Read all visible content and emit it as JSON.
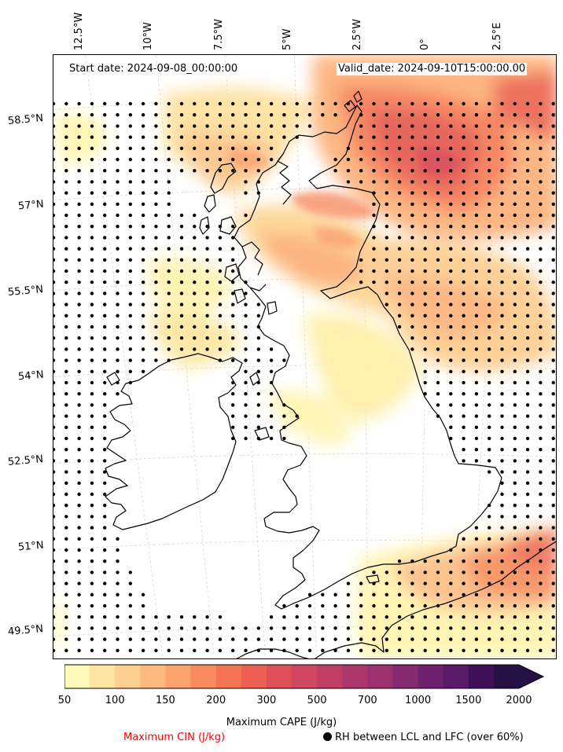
{
  "header": {
    "start_date": "Start date: 2024-09-08_00:00:00",
    "valid_date": "Valid_date: 2024-09-10T15:00:00.00"
  },
  "longitude_labels": [
    "12.5°W",
    "10°W",
    "7.5°W",
    "5°W",
    "2.5°W",
    "0°",
    "2.5°E"
  ],
  "latitude_labels": [
    "58.5°N",
    "57°N",
    "55.5°N",
    "54°N",
    "52.5°N",
    "51°N",
    "49.5°N"
  ],
  "colorbar": {
    "ticks": [
      "50",
      "100",
      "150",
      "200",
      "300",
      "500",
      "700",
      "1000",
      "1500",
      "2000"
    ],
    "colors": [
      "#fff9b9",
      "#fee4a2",
      "#fecf8f",
      "#fdb97d",
      "#fca26d",
      "#f98b5f",
      "#f57454",
      "#ec5f52",
      "#de4f58",
      "#d14660",
      "#c03e66",
      "#ad376b",
      "#9a306e",
      "#852a70",
      "#6f216f",
      "#5a1a6b",
      "#3f1059",
      "#251146"
    ],
    "extend": "max"
  },
  "legend": {
    "cape_title": "Maximum CAPE (J/kg)",
    "cin_label": "Maximum CIN (J/kg)",
    "rh_label": "RH between LCL and LFC (over 60%)"
  },
  "colors": {
    "cin_text": "#ff0000",
    "dots": "#000000",
    "coast": "#000000"
  }
}
